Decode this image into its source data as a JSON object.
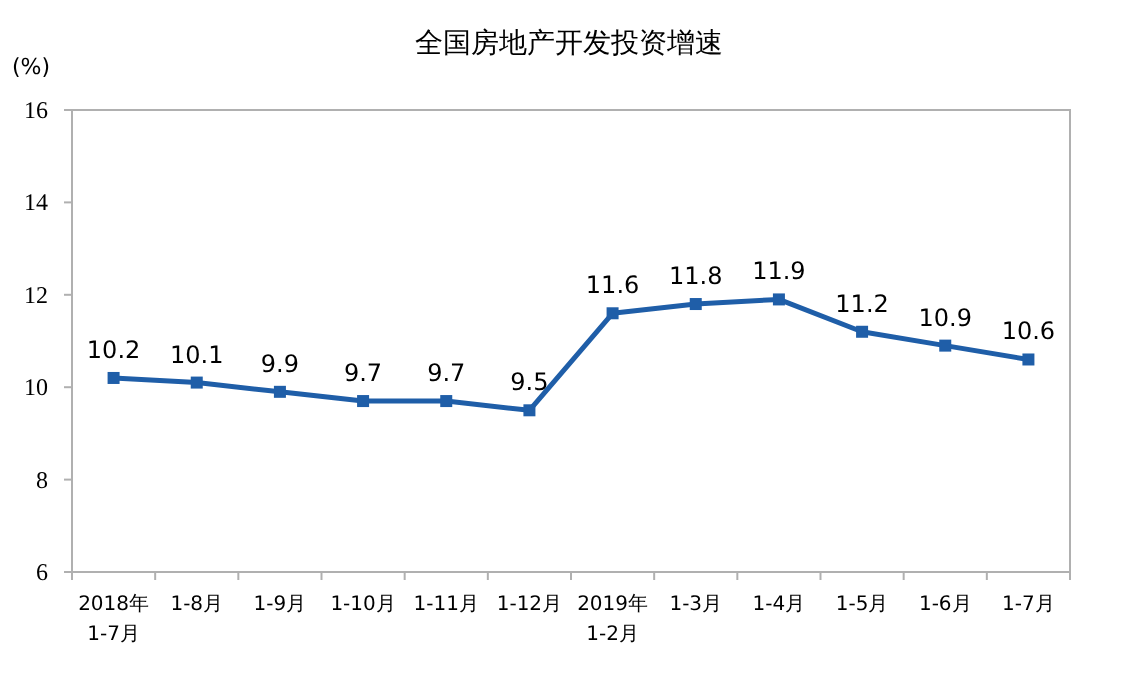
{
  "chart_data": {
    "type": "line",
    "title": "全国房地产开发投资增速",
    "ylabel": "(%)",
    "categories": [
      "2018年\n1-7月",
      "1-8月",
      "1-9月",
      "1-10月",
      "1-11月",
      "1-12月",
      "2019年\n1-2月",
      "1-3月",
      "1-4月",
      "1-5月",
      "1-6月",
      "1-7月"
    ],
    "series": [
      {
        "color": "#1f5ea8",
        "values": [
          10.2,
          10.1,
          9.9,
          9.7,
          9.7,
          9.5,
          11.6,
          11.8,
          11.9,
          11.2,
          10.9,
          10.6
        ]
      }
    ],
    "ylim": [
      6,
      16
    ],
    "yticks": [
      6,
      8,
      10,
      12,
      14,
      16
    ],
    "marker": "square",
    "line_style": "solid",
    "data_labels": true,
    "grid": false
  }
}
